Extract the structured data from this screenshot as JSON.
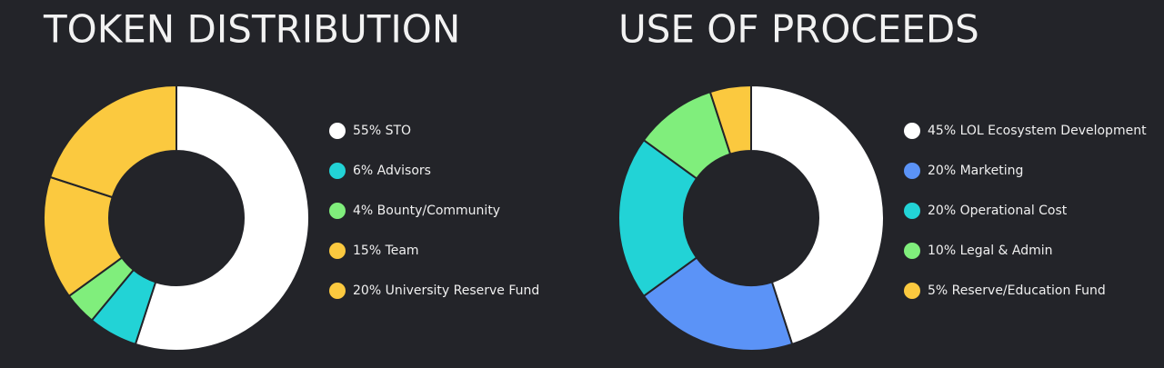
{
  "chart_data": [
    {
      "type": "donut",
      "title": "TOKEN DISTRIBUTION",
      "categories": [
        "55% STO",
        "6% Advisors",
        "4% Bounty/Community",
        "15% Team",
        "20% University Reserve Fund"
      ],
      "values": [
        55,
        6,
        4,
        15,
        20
      ],
      "colors": [
        "#ffffff",
        "#22d3d6",
        "#80ee7c",
        "#fbc93f",
        "#fbc93f"
      ]
    },
    {
      "type": "donut",
      "title": "USE OF PROCEEDS",
      "categories": [
        "45% LOL Ecosystem Development",
        "20% Marketing",
        "20% Operational Cost",
        "10% Legal & Admin",
        "5% Reserve/Education Fund"
      ],
      "values": [
        45,
        20,
        20,
        10,
        5
      ],
      "colors": [
        "#ffffff",
        "#5b93f7",
        "#22d3d6",
        "#80ee7c",
        "#fbc93f"
      ]
    }
  ]
}
